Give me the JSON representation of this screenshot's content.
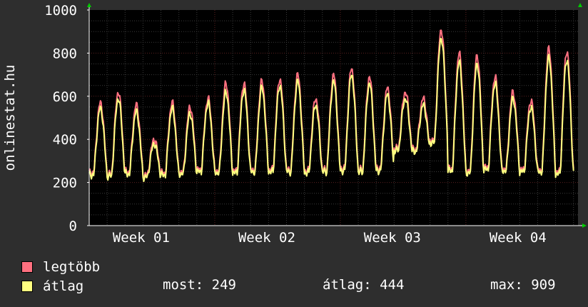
{
  "colors": {
    "background": "#2e2e2e",
    "plot_background": "#000000",
    "grid_major": "#5a2020",
    "grid_minor": "#3a3a3a",
    "axis": "#ffffff",
    "arrow": "#00cc00",
    "series_max": "#ff7080",
    "series_avg": "#ffff80"
  },
  "chart_data": {
    "type": "line",
    "ylabel": "onlinestat.hu",
    "ylim": [
      0,
      1000
    ],
    "y_ticks": [
      0,
      200,
      400,
      600,
      800,
      1000
    ],
    "x_ticks": [
      "Week 01",
      "Week 02",
      "Week 03",
      "Week 04"
    ],
    "grid": true,
    "legend_position": "bottom-left",
    "daily_peaks_max": [
      570,
      620,
      560,
      400,
      570,
      550,
      590,
      660,
      660,
      670,
      680,
      700,
      590,
      700,
      730,
      690,
      640,
      620,
      590,
      909,
      800,
      790,
      690,
      620,
      580,
      820,
      810
    ],
    "daily_peaks_avg": [
      545,
      590,
      530,
      380,
      545,
      520,
      570,
      620,
      630,
      640,
      650,
      670,
      560,
      670,
      700,
      660,
      610,
      590,
      560,
      870,
      760,
      750,
      660,
      590,
      550,
      780,
      770
    ],
    "daily_troughs": [
      235,
      230,
      240,
      225,
      235,
      240,
      250,
      245,
      245,
      250,
      250,
      250,
      245,
      250,
      255,
      250,
      255,
      350,
      345,
      385,
      255,
      245,
      260,
      255,
      250,
      250,
      240
    ],
    "series": [
      {
        "name": "legtöbb",
        "color": "#ff7080"
      },
      {
        "name": "átlag",
        "color": "#ffff80"
      }
    ]
  },
  "legend": {
    "max_label": "legtöbb",
    "avg_label": "átlag"
  },
  "stats": {
    "current": "most: 249",
    "average": "átlag: 444",
    "maximum": "max: 909"
  }
}
